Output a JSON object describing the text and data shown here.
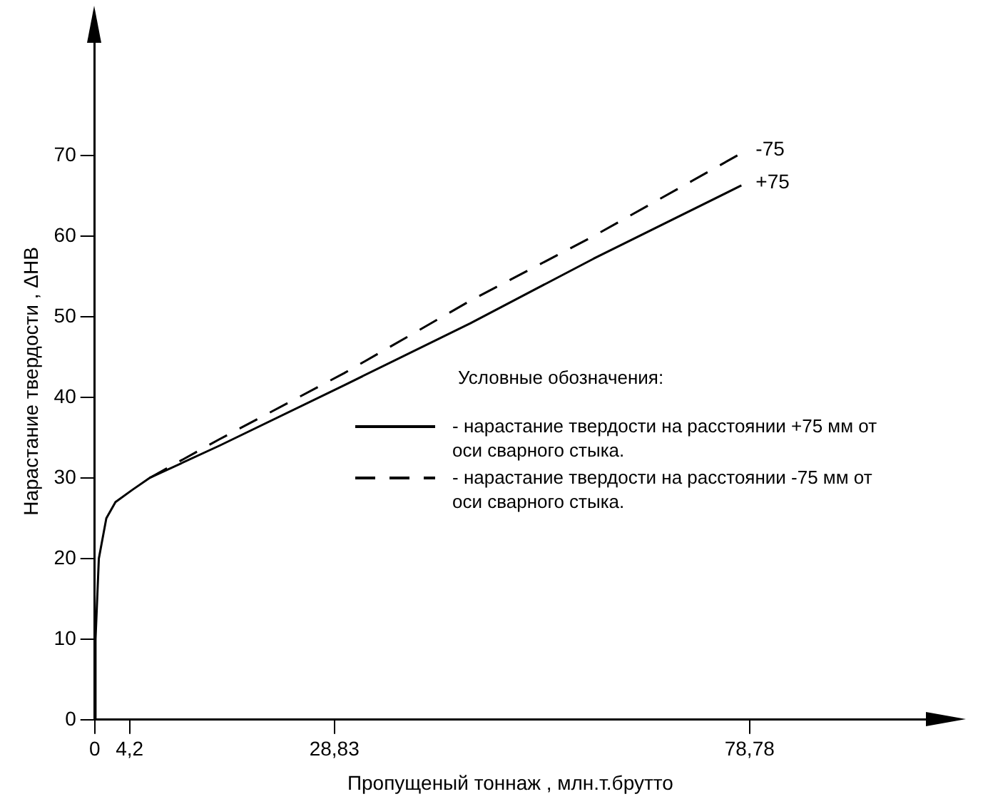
{
  "chart_data": {
    "type": "line",
    "xlabel": "Пропущеный тоннаж , млн.т.брутто",
    "ylabel": "Нарастание твердости , ΔHB",
    "legend_title": "Условные обозначения:",
    "legend": "right",
    "grid": false,
    "marker": "none",
    "xlim": [
      0,
      100
    ],
    "xticks": [
      0,
      {
        "value": 4.2,
        "label": "4,2"
      },
      {
        "value": 28.83,
        "label": "28,83"
      },
      {
        "value": 78.78,
        "label": "78,78"
      }
    ],
    "ylim": [
      0,
      84
    ],
    "yticks": [
      0,
      10,
      20,
      30,
      40,
      50,
      60,
      70
    ],
    "series": [
      {
        "name": "- нарастание твердости на расстоянии +75 мм от оси сварного стыка.",
        "color": "#000000",
        "line_style": "solid",
        "x": [
          0,
          0.1,
          0.5,
          1.4,
          2.5,
          4.5,
          6.6,
          15,
          30,
          45.2,
          60,
          77.8
        ],
        "values": [
          0,
          10,
          20,
          25,
          27,
          28.5,
          30,
          34,
          41.5,
          49.2,
          57.2,
          66.3
        ]
      },
      {
        "name": "- нарастание твердости на расстоянии -75 мм от оси сварного стыка.",
        "color": "#000000",
        "line_style": "dashed",
        "x": [
          6.6,
          15,
          30,
          45.2,
          60,
          77.8
        ],
        "values": [
          30,
          34.8,
          43,
          52,
          60,
          70.3
        ]
      }
    ],
    "annotations": [
      {
        "text": "-75",
        "x": 77.8,
        "y": 70.3
      },
      {
        "text": "+75",
        "x": 77.8,
        "y": 66.3
      }
    ]
  }
}
